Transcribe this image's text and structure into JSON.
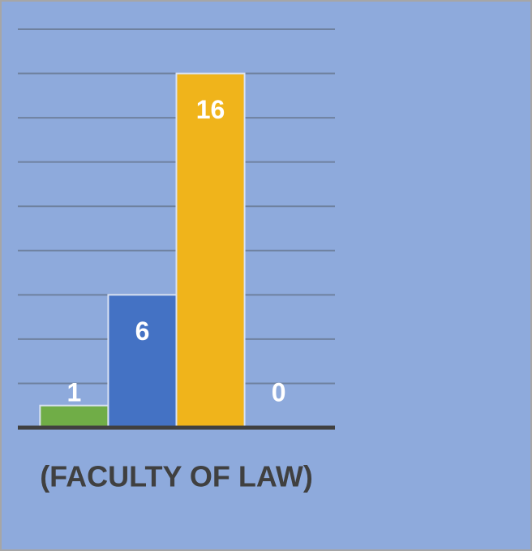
{
  "chart_data": {
    "type": "bar",
    "categories": [
      "(FACULTY OF LAW)"
    ],
    "series": [
      {
        "color": "#70ad47",
        "values": [
          1
        ]
      },
      {
        "color": "#4472c4",
        "values": [
          6
        ]
      },
      {
        "color": "#f0b41b",
        "values": [
          16
        ]
      },
      {
        "values": [
          0
        ]
      }
    ],
    "ylim": [
      0,
      18
    ],
    "yticks": [
      0,
      2,
      4,
      6,
      8,
      10,
      12,
      14,
      16,
      18
    ],
    "grid": true
  }
}
